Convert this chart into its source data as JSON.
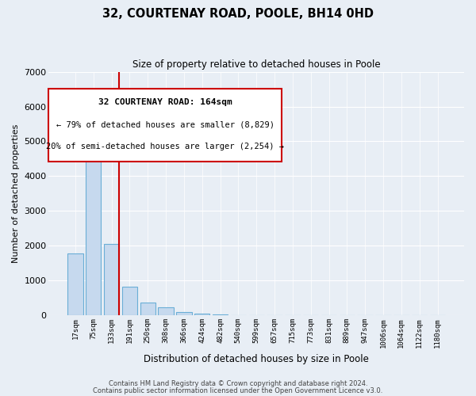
{
  "title": "32, COURTENAY ROAD, POOLE, BH14 0HD",
  "subtitle": "Size of property relative to detached houses in Poole",
  "xlabel": "Distribution of detached houses by size in Poole",
  "ylabel": "Number of detached properties",
  "bar_color": "#c6d9ee",
  "bar_edge_color": "#6aaed6",
  "bg_color": "#e8eef5",
  "grid_color": "#ffffff",
  "annotation_box_color": "#cc0000",
  "vline_color": "#cc0000",
  "categories": [
    "17sqm",
    "75sqm",
    "133sqm",
    "191sqm",
    "250sqm",
    "308sqm",
    "366sqm",
    "424sqm",
    "482sqm",
    "540sqm",
    "599sqm",
    "657sqm",
    "715sqm",
    "773sqm",
    "831sqm",
    "889sqm",
    "947sqm",
    "1006sqm",
    "1064sqm",
    "1122sqm",
    "1180sqm"
  ],
  "values": [
    1780,
    5740,
    2050,
    830,
    370,
    230,
    100,
    50,
    30,
    10,
    5,
    2,
    2,
    0,
    0,
    0,
    0,
    0,
    0,
    0,
    0
  ],
  "ylim": [
    0,
    7000
  ],
  "annotation_title": "32 COURTENAY ROAD: 164sqm",
  "annotation_line1": "← 79% of detached houses are smaller (8,829)",
  "annotation_line2": "20% of semi-detached houses are larger (2,254) →",
  "footnote1": "Contains HM Land Registry data © Crown copyright and database right 2024.",
  "footnote2": "Contains public sector information licensed under the Open Government Licence v3.0."
}
